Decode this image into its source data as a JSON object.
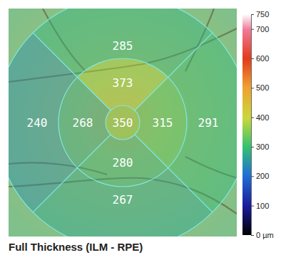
{
  "chart_data": {
    "type": "thickness_map",
    "title": "Full Thickness (ILM - RPE)",
    "center": 350,
    "inner": [
      373,
      315,
      280,
      268
    ],
    "outer": [
      285,
      291,
      267,
      240
    ],
    "colorbar": {
      "range": [
        0,
        750
      ],
      "ticks": [
        {
          "value": 0,
          "label": "0 µm"
        },
        100,
        200,
        300,
        400,
        500,
        600,
        700,
        750
      ]
    }
  }
}
